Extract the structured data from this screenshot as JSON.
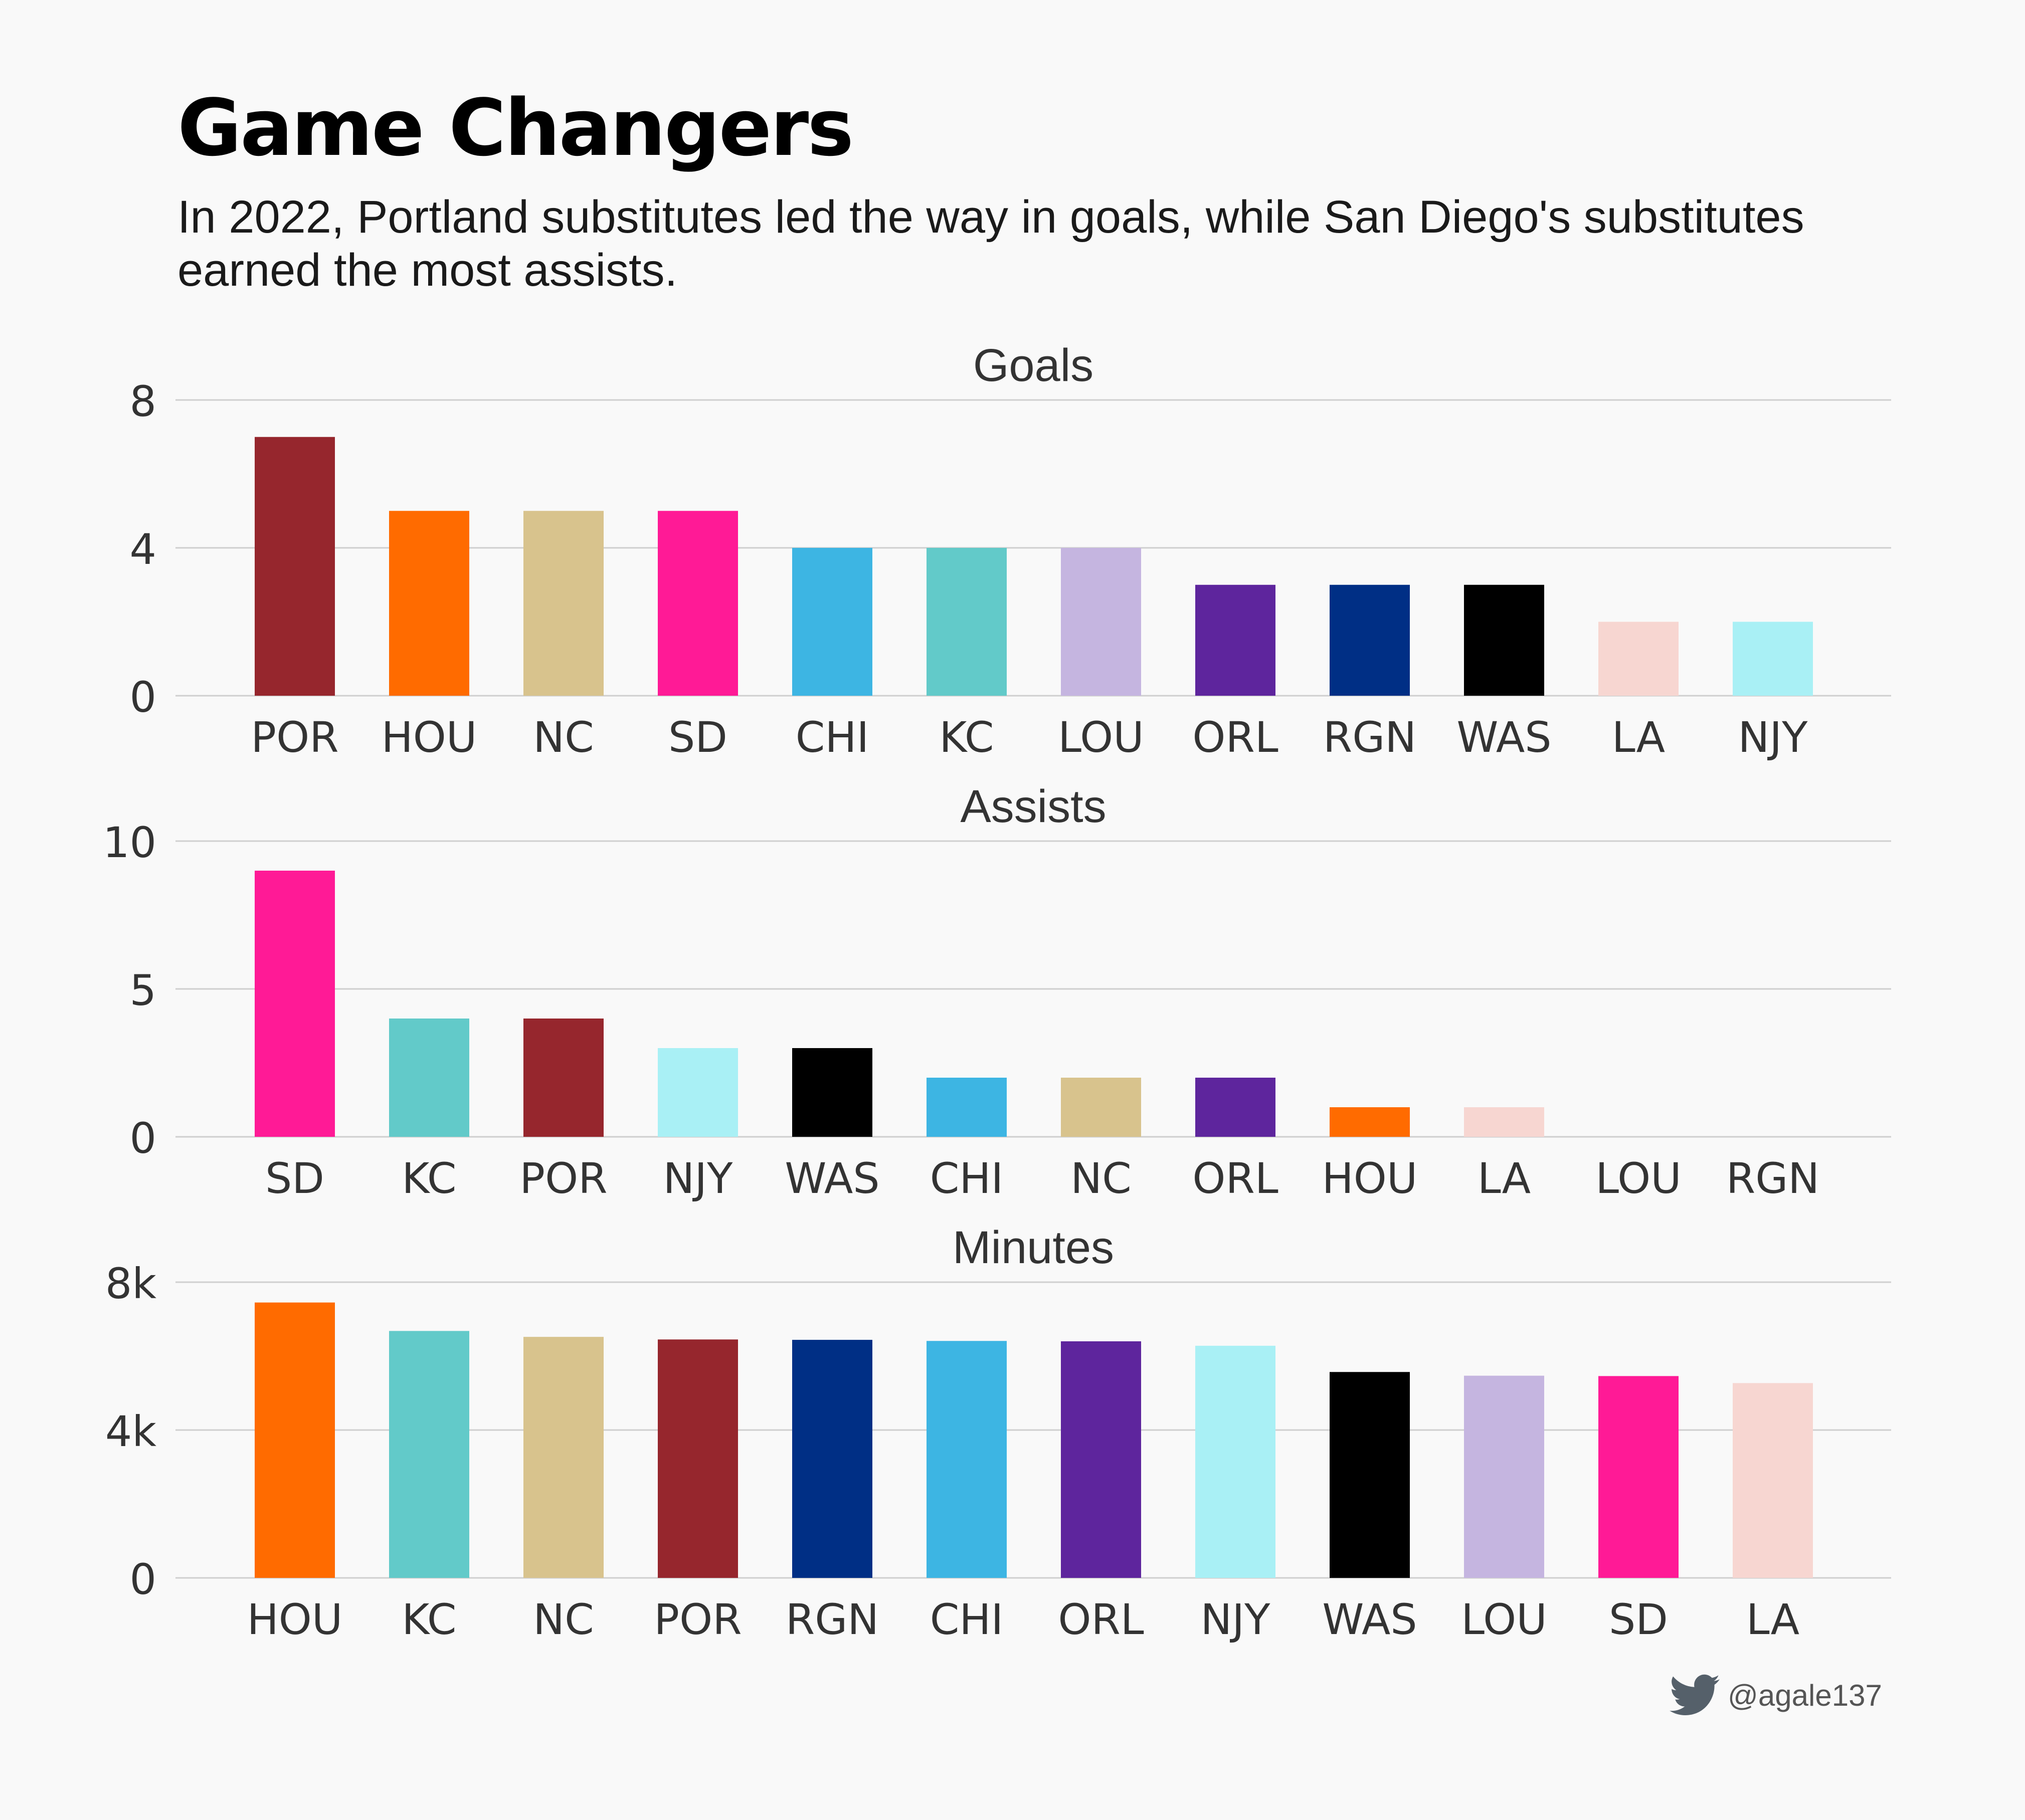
{
  "title": "Game Changers",
  "subtitle": "In 2022, Portland substitutes led the way in goals, while San Diego's substitutes earned the most assists.",
  "credit": {
    "icon": "twitter-bird-icon",
    "handle": "@agale137"
  },
  "colors": {
    "POR": "#96262d",
    "HOU": "#ff6b00",
    "NC": "#d8c38d",
    "SD": "#ff1a96",
    "CHI": "#3db5e3",
    "KC": "#62cac9",
    "LOU": "#c5b5e0",
    "ORL": "#5e259d",
    "RGN": "#002f85",
    "WAS": "#000000",
    "LA": "#f7d6d1",
    "NJY": "#a9f0f5"
  },
  "chart_data": [
    {
      "type": "bar",
      "title": "Goals",
      "categories": [
        "POR",
        "HOU",
        "NC",
        "SD",
        "CHI",
        "KC",
        "LOU",
        "ORL",
        "RGN",
        "WAS",
        "LA",
        "NJY"
      ],
      "values": [
        7,
        5,
        5,
        5,
        4,
        4,
        4,
        3,
        3,
        3,
        2,
        2
      ],
      "ylim": [
        0,
        8
      ],
      "yticks": [
        0,
        4,
        8
      ],
      "ytick_labels": [
        "0",
        "4",
        "8"
      ],
      "grid": true
    },
    {
      "type": "bar",
      "title": "Assists",
      "categories": [
        "SD",
        "KC",
        "POR",
        "NJY",
        "WAS",
        "CHI",
        "NC",
        "ORL",
        "HOU",
        "LA",
        "LOU",
        "RGN"
      ],
      "values": [
        9,
        4,
        4,
        3,
        3,
        2,
        2,
        2,
        1,
        1,
        0,
        0
      ],
      "ylim": [
        0,
        10
      ],
      "yticks": [
        0,
        5,
        10
      ],
      "ytick_labels": [
        "0",
        "5",
        "10"
      ],
      "grid": true
    },
    {
      "type": "bar",
      "title": "Minutes",
      "categories": [
        "HOU",
        "KC",
        "NC",
        "POR",
        "RGN",
        "CHI",
        "ORL",
        "NJY",
        "WAS",
        "LOU",
        "SD",
        "LA"
      ],
      "values": [
        7450,
        6680,
        6520,
        6450,
        6440,
        6410,
        6400,
        6280,
        5570,
        5470,
        5460,
        5270
      ],
      "ylim": [
        0,
        8000
      ],
      "yticks": [
        0,
        4000,
        8000
      ],
      "ytick_labels": [
        "0",
        "4k",
        "8k"
      ],
      "grid": true
    }
  ]
}
